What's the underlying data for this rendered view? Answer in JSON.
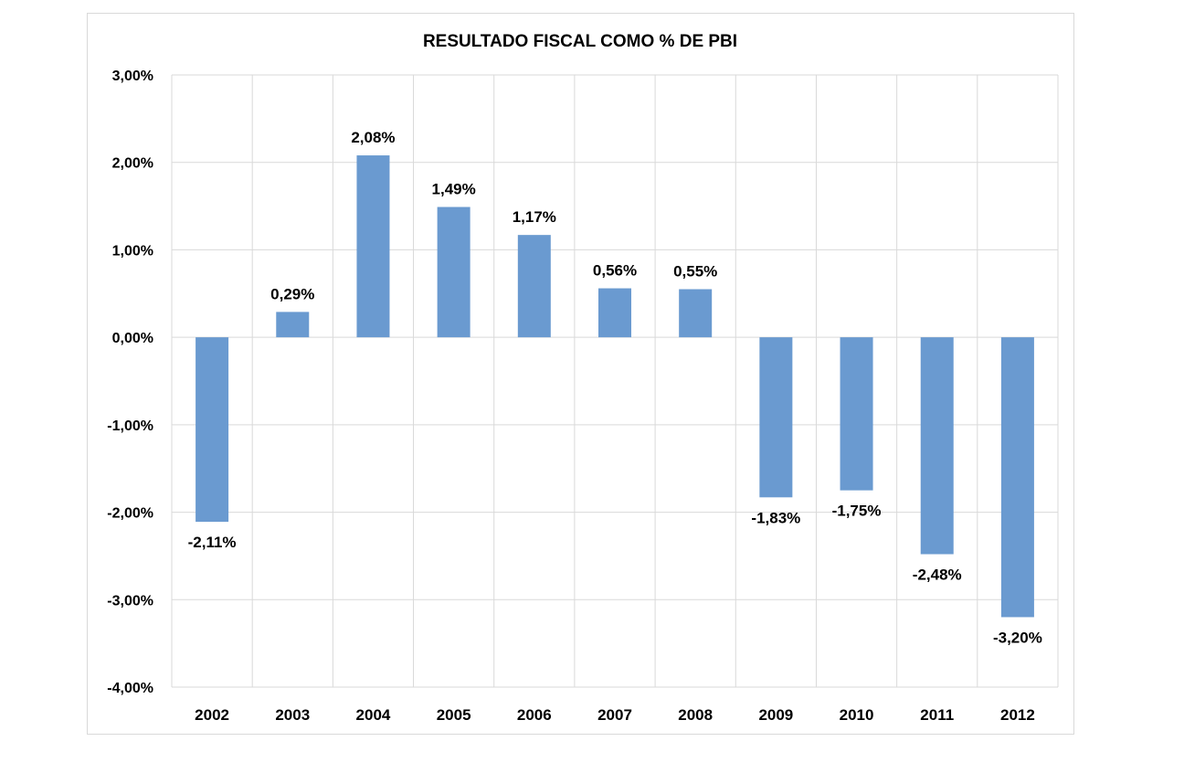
{
  "chart_data": {
    "type": "bar",
    "title": "RESULTADO  FISCAL COMO % DE PBI",
    "xlabel": "",
    "ylabel": "",
    "categories": [
      "2002",
      "2003",
      "2004",
      "2005",
      "2006",
      "2007",
      "2008",
      "2009",
      "2010",
      "2011",
      "2012"
    ],
    "values": [
      -2.11,
      0.29,
      2.08,
      1.49,
      1.17,
      0.56,
      0.55,
      -1.83,
      -1.75,
      -2.48,
      -3.2
    ],
    "data_labels": [
      "-2,11%",
      "0,29%",
      "2,08%",
      "1,49%",
      "1,17%",
      "0,56%",
      "0,55%",
      "-1,83%",
      "-1,75%",
      "-2,48%",
      "-3,20%"
    ],
    "ylim": [
      -4,
      3
    ],
    "yticks": [
      3,
      2,
      1,
      0,
      -1,
      -2,
      -3,
      -4
    ],
    "ytick_labels": [
      "3,00%",
      "2,00%",
      "1,00%",
      "0,00%",
      "-1,00%",
      "-2,00%",
      "-3,00%",
      "-4,00%"
    ],
    "grid": true,
    "bar_color": "#6a9ad0"
  }
}
